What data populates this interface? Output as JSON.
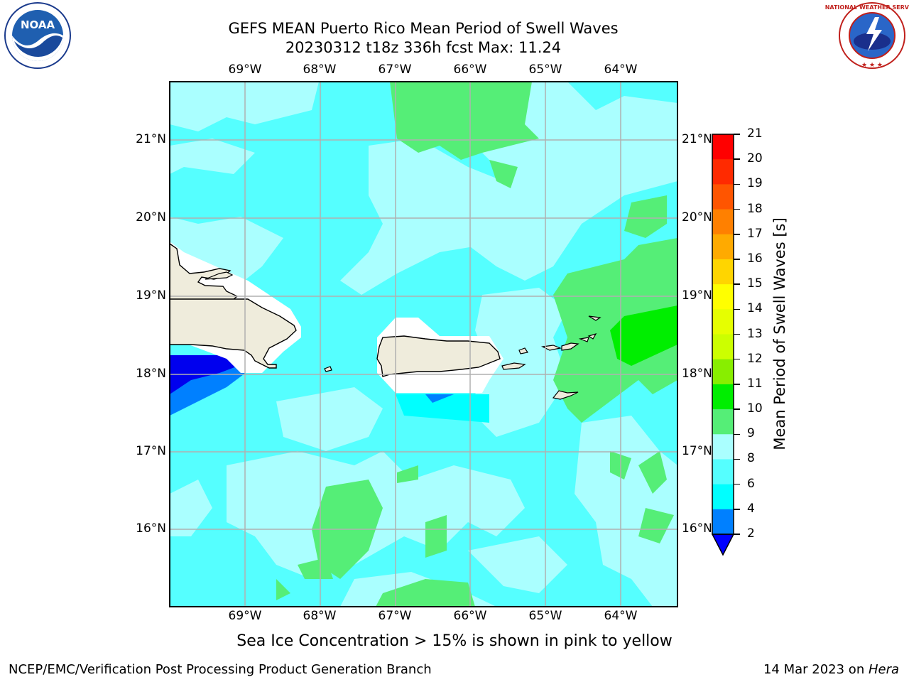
{
  "header": {
    "title_line1": "GEFS MEAN Puerto Rico Mean Period of Swell Waves",
    "title_line2": "20230312 t18z 336h fcst   Max: 11.24"
  },
  "logos": {
    "left_text": "NOAA",
    "left_ring": "NATIONAL OCEANIC AND ATMOSPHERIC ADMINISTRATION · U.S. DEPARTMENT OF COMMERCE",
    "right_ring": "NATIONAL WEATHER SERVICE"
  },
  "map": {
    "lon_labels": [
      "69°W",
      "68°W",
      "67°W",
      "66°W",
      "65°W",
      "64°W"
    ],
    "lat_labels": [
      "21°N",
      "20°N",
      "19°N",
      "18°N",
      "17°N",
      "16°N"
    ],
    "extent": {
      "lon_min": -69.99,
      "lon_max": -63.27,
      "lat_min": 15.02,
      "lat_max": 21.75
    },
    "colors": {
      "land": "#efecdc",
      "coast": "#000000",
      "grid": "#b0b0b0"
    }
  },
  "colorbar": {
    "label": "Mean Period of Swell Waves [s]",
    "ticks": [
      "21",
      "20",
      "19",
      "18",
      "17",
      "16",
      "15",
      "14",
      "13",
      "12",
      "11",
      "10",
      "9",
      "8",
      "6",
      "4",
      "2"
    ],
    "colors_top_to_bottom": [
      "#ff0000",
      "#ff2a00",
      "#ff5500",
      "#ff8000",
      "#ffaa00",
      "#ffd500",
      "#ffff00",
      "#e6ff00",
      "#ccff00",
      "#88ee00",
      "#00ee00",
      "#55ee77",
      "#aaffff",
      "#55ffff",
      "#00ffff",
      "#0080ff",
      "#0000ff"
    ]
  },
  "note": "Sea Ice Concentration > 15% is shown in pink to yellow",
  "footer": {
    "left": "NCEP/EMC/Verification Post Processing Product Generation Branch",
    "date": "14 Mar 2023 on ",
    "machine": "Hera"
  }
}
